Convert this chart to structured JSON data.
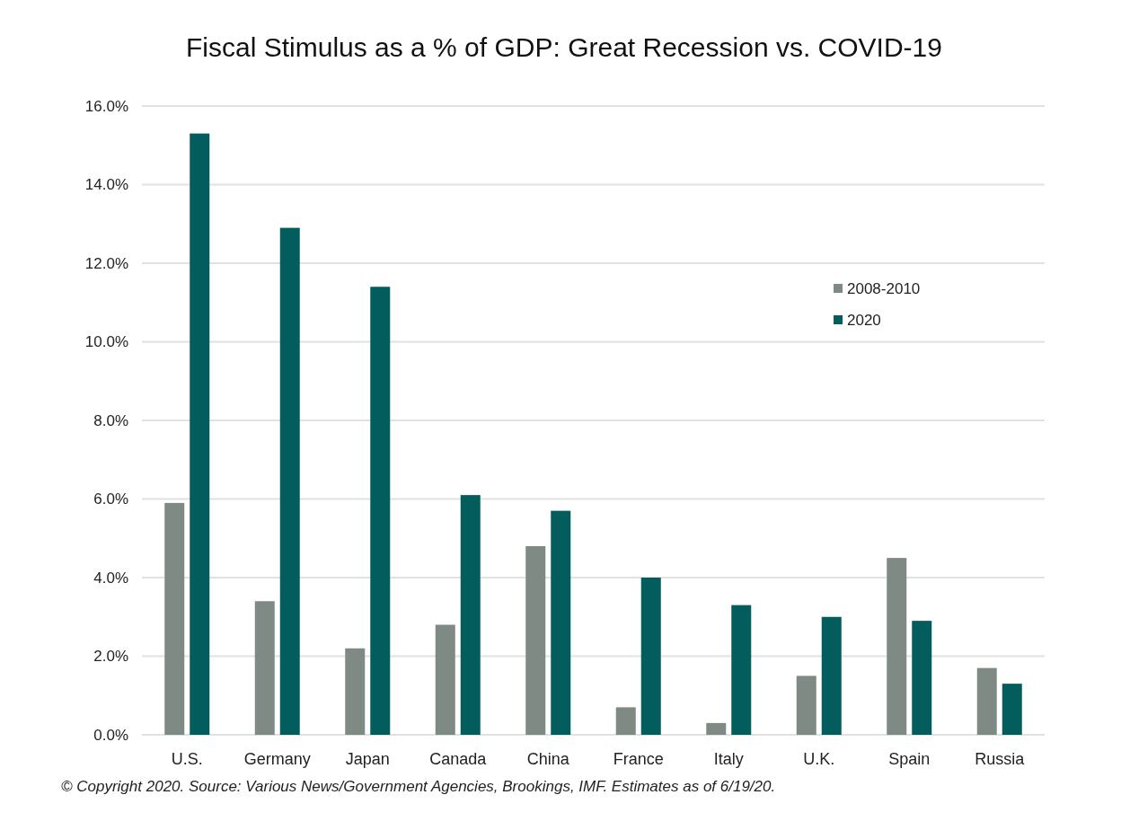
{
  "chart_data": {
    "type": "bar",
    "title": "Fiscal Stimulus as a % of GDP: Great Recession vs. COVID-19",
    "categories": [
      "U.S.",
      "Germany",
      "Japan",
      "Canada",
      "China",
      "France",
      "Italy",
      "U.K.",
      "Spain",
      "Russia"
    ],
    "series": [
      {
        "name": "2008-2010",
        "color": "#7f8a84",
        "values": [
          5.9,
          3.4,
          2.2,
          2.8,
          4.8,
          0.7,
          0.3,
          1.5,
          4.5,
          1.7
        ]
      },
      {
        "name": "2020",
        "color": "#045d5d",
        "values": [
          15.3,
          12.9,
          11.4,
          6.1,
          5.7,
          4.0,
          3.3,
          3.0,
          2.9,
          1.3
        ]
      }
    ],
    "ylim": [
      0,
      16
    ],
    "yticks": [
      {
        "value": 0,
        "label": "0.0%"
      },
      {
        "value": 2,
        "label": "2.0%"
      },
      {
        "value": 4,
        "label": "4.0%"
      },
      {
        "value": 6,
        "label": "6.0%"
      },
      {
        "value": 8,
        "label": "8.0%"
      },
      {
        "value": 10,
        "label": "10.0%"
      },
      {
        "value": 12,
        "label": "12.0%"
      },
      {
        "value": 14,
        "label": "14.0%"
      },
      {
        "value": 16,
        "label": "16.0%"
      }
    ],
    "grid": "y",
    "legend": "top right",
    "annotations": [
      "© Copyright 2020. Source: Various News/Government Agencies, Brookings, IMF. Estimates as of 6/19/20."
    ]
  }
}
